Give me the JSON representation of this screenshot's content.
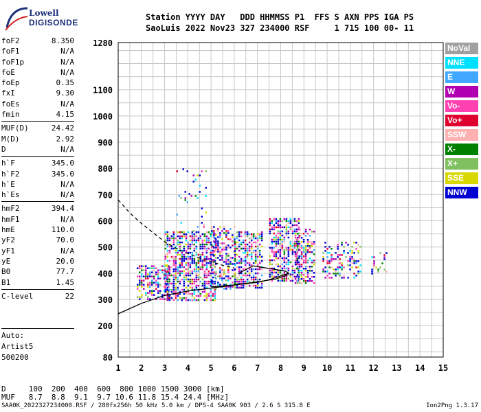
{
  "logo": {
    "line1": "Lowell",
    "line2": "DIGISONDE"
  },
  "header": {
    "line1": "Station YYYY DAY   DDD HHMMSS P1  FFS S AXN PPS IGA PS",
    "line2": "SaoLuis 2022 Nov23 327 234000 RSF     1 715 100 00- 11"
  },
  "params": [
    {
      "name": "foF2",
      "value": "8.350"
    },
    {
      "name": "foF1",
      "value": "N/A"
    },
    {
      "name": "foF1p",
      "value": "N/A"
    },
    {
      "name": "foE",
      "value": "N/A"
    },
    {
      "name": "foEp",
      "value": "0.35"
    },
    {
      "name": "fxI",
      "value": "9.30"
    },
    {
      "name": "foEs",
      "value": "N/A"
    },
    {
      "name": "fmin",
      "value": "4.15"
    },
    {
      "name": "MUF(D)",
      "value": "24.42",
      "sep": true
    },
    {
      "name": "M(D)",
      "value": "2.92"
    },
    {
      "name": "D",
      "value": "N/A"
    },
    {
      "name": "h`F",
      "value": "345.0",
      "sep": true
    },
    {
      "name": "h`F2",
      "value": "345.0"
    },
    {
      "name": "h`E",
      "value": "N/A"
    },
    {
      "name": "h`Es",
      "value": "N/A"
    },
    {
      "name": "hmF2",
      "value": "394.4",
      "sep": true
    },
    {
      "name": "hmF1",
      "value": "N/A"
    },
    {
      "name": "hmE",
      "value": "110.0"
    },
    {
      "name": "yF2",
      "value": "70.0"
    },
    {
      "name": "yF1",
      "value": "N/A"
    },
    {
      "name": "yE",
      "value": "20.0"
    },
    {
      "name": "B0",
      "value": "77.7"
    },
    {
      "name": "B1",
      "value": "1.45"
    },
    {
      "name": "C-level",
      "value": "22",
      "sep": true
    }
  ],
  "auto": {
    "line1": "Auto:",
    "line2": "Artist5",
    "line3": "500200"
  },
  "legend": [
    {
      "label": "NoVal",
      "color": "#a0a0a0"
    },
    {
      "label": "NNE",
      "color": "#00e0ff"
    },
    {
      "label": "E",
      "color": "#40a8ff"
    },
    {
      "label": "W",
      "color": "#b000b0"
    },
    {
      "label": "Vo-",
      "color": "#ff40b0"
    },
    {
      "label": "Vo+",
      "color": "#e00030"
    },
    {
      "label": "SSW",
      "color": "#ffb0b0"
    },
    {
      "label": "X-",
      "color": "#008000"
    },
    {
      "label": "X+",
      "color": "#80c060"
    },
    {
      "label": "SSE",
      "color": "#d8d800"
    },
    {
      "label": "NNW",
      "color": "#0000d0"
    }
  ],
  "bottom": {
    "d_row": "D     100  200  400  600  800 1000 1500 3000 [km]",
    "muf_row": "MUF   8.7  8.8  9.1  9.7 10.6 11.8 15.4 24.4 [MHz]",
    "footer_left": "SAA0K_2022327234000.RSF / 280fx256h 50 kHz 5.0 km / DPS-4 SAA0K 903 / 2.6 S 315.8 E",
    "footer_right": "Ion2Png 1.3.17"
  },
  "chart_data": {
    "type": "scatter",
    "xlabel": "",
    "ylabel": "",
    "xlim": [
      1,
      15
    ],
    "ylim": [
      80,
      1280
    ],
    "x_ticks": [
      1,
      2,
      3,
      4,
      5,
      6,
      7,
      8,
      9,
      10,
      11,
      12,
      13,
      14,
      15
    ],
    "y_ticks": [
      80,
      200,
      300,
      400,
      500,
      600,
      700,
      800,
      900,
      1000,
      1100,
      1280
    ],
    "y_grid": [
      80,
      100,
      150,
      200,
      250,
      300,
      350,
      400,
      450,
      500,
      550,
      600,
      650,
      700,
      750,
      800,
      850,
      900,
      950,
      1000,
      1050,
      1100,
      1150,
      1200,
      1250,
      1280
    ],
    "traces": [
      {
        "name": "ordinary",
        "style": "solid",
        "x": [
          1.0,
          1.5,
          2.0,
          3.0,
          4.0,
          5.0,
          6.0,
          7.0,
          7.8,
          8.35
        ],
        "y": [
          245,
          265,
          285,
          315,
          332,
          343,
          355,
          367,
          378,
          395
        ]
      },
      {
        "name": "profile",
        "style": "solid",
        "x": [
          5.0,
          6.0,
          7.0,
          7.5,
          8.0,
          8.35,
          8.2,
          7.5,
          6.8,
          6.2
        ],
        "y": [
          348,
          355,
          365,
          375,
          390,
          400,
          408,
          418,
          428,
          400
        ]
      },
      {
        "name": "dashed",
        "style": "dashed",
        "x": [
          1.0,
          1.5,
          2.0,
          2.5,
          3.0,
          3.5,
          4.0,
          4.5,
          5.0,
          5.5,
          6.0
        ],
        "y": [
          680,
          630,
          590,
          555,
          520,
          495,
          475,
          458,
          445,
          430,
          420
        ]
      }
    ],
    "echo_clusters": [
      {
        "x_range": [
          1.8,
          3.2
        ],
        "y_range": [
          300,
          430
        ],
        "density": 0.55
      },
      {
        "x_range": [
          3.0,
          5.2
        ],
        "y_range": [
          300,
          560
        ],
        "density": 0.6
      },
      {
        "x_range": [
          3.5,
          4.8
        ],
        "y_range": [
          560,
          800
        ],
        "density": 0.08
      },
      {
        "x_range": [
          5.0,
          6.0
        ],
        "y_range": [
          340,
          580
        ],
        "density": 0.5
      },
      {
        "x_range": [
          6.0,
          7.2
        ],
        "y_range": [
          340,
          560
        ],
        "density": 0.55
      },
      {
        "x_range": [
          7.5,
          8.8
        ],
        "y_range": [
          370,
          610
        ],
        "density": 0.55
      },
      {
        "x_range": [
          8.6,
          9.4
        ],
        "y_range": [
          360,
          570
        ],
        "density": 0.5
      },
      {
        "x_range": [
          9.8,
          11.4
        ],
        "y_range": [
          380,
          520
        ],
        "density": 0.35
      },
      {
        "x_range": [
          11.9,
          12.6
        ],
        "y_range": [
          380,
          480
        ],
        "density": 0.15
      }
    ]
  }
}
